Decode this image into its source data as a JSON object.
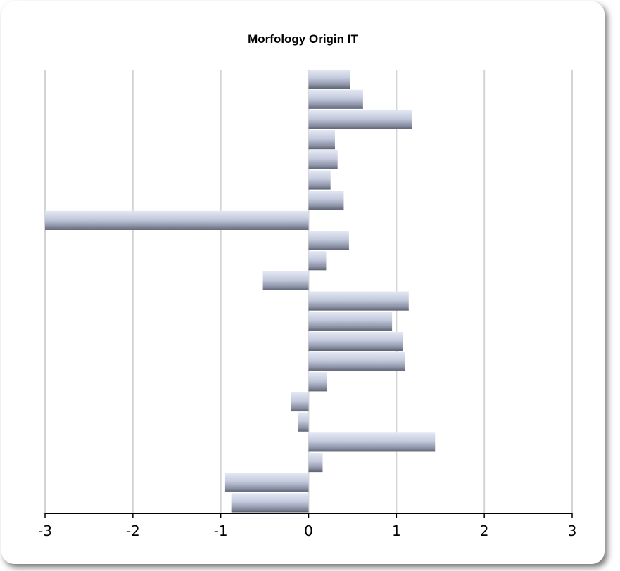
{
  "chart_data": {
    "type": "bar",
    "orientation": "horizontal",
    "title": "Morfology Origin IT",
    "xlim": [
      -3,
      3
    ],
    "xticks": [
      -3,
      -2,
      -1,
      0,
      1,
      2,
      3
    ],
    "grid": "vertical",
    "values": [
      0.47,
      0.62,
      1.18,
      0.3,
      0.33,
      0.25,
      0.4,
      -3.0,
      0.46,
      0.2,
      -0.52,
      1.14,
      0.95,
      1.07,
      1.1,
      0.21,
      -0.2,
      -0.12,
      1.44,
      0.16,
      -0.95,
      -0.88
    ]
  }
}
